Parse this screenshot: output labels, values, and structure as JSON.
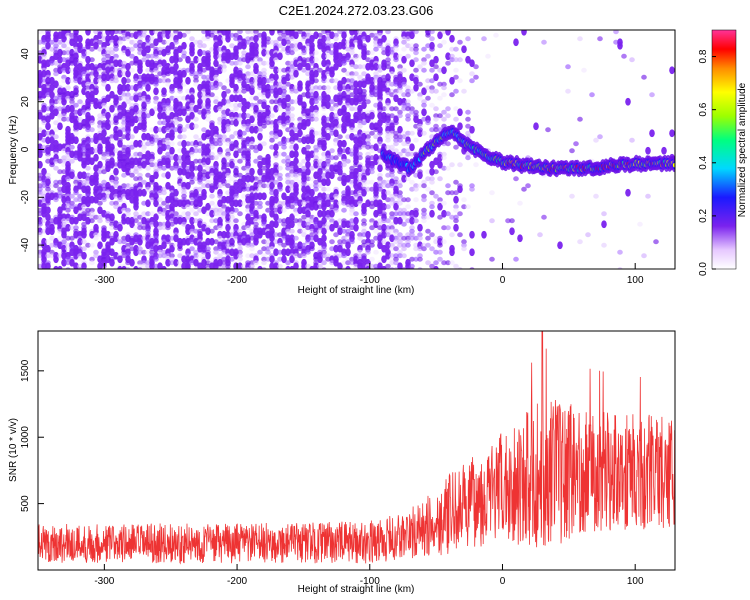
{
  "title": "C2E1.2024.272.03.23.G06",
  "chart_data": [
    {
      "type": "heatmap",
      "xlabel": "Height of straight line (km)",
      "ylabel": "Frequency (Hz)",
      "xlim": [
        -350,
        130
      ],
      "ylim": [
        -50,
        50
      ],
      "x_ticks": [
        -300,
        -200,
        -100,
        0,
        100
      ],
      "y_ticks": [
        -40,
        -20,
        0,
        20,
        40
      ],
      "colorbar": {
        "label": "Normalized spectral amplitude",
        "range": [
          0.0,
          0.9
        ],
        "ticks": [
          0.0,
          0.2,
          0.4,
          0.6,
          0.8
        ]
      },
      "ridge": {
        "description_values": "frequency (Hz) of spectral ridge vs height (km)",
        "x": [
          -90,
          -80,
          -70,
          -60,
          -50,
          -45,
          -40,
          -30,
          -20,
          -10,
          0,
          20,
          40,
          60,
          80,
          100,
          120,
          130
        ],
        "y": [
          -2,
          -5,
          -8,
          -2,
          3,
          6,
          8,
          3,
          0,
          -3,
          -5,
          -7,
          -8,
          -8,
          -7,
          -6,
          -6,
          -6
        ]
      }
    },
    {
      "type": "line",
      "xlabel": "Height of straight line (km)",
      "ylabel": "SNR (10 * v/v)",
      "xlim": [
        -350,
        130
      ],
      "ylim": [
        0,
        1800
      ],
      "x_ticks": [
        -300,
        -200,
        -100,
        0,
        100
      ],
      "y_ticks": [
        500,
        1000,
        1500
      ],
      "series": [
        {
          "name": "SNR",
          "color": "#ee3333",
          "envelope_x": [
            -350,
            -300,
            -200,
            -100,
            -80,
            -60,
            -50,
            -40,
            -20,
            0,
            20,
            30,
            40,
            60,
            80,
            100,
            130
          ],
          "envelope_mean": [
            200,
            200,
            200,
            210,
            240,
            300,
            360,
            420,
            520,
            620,
            700,
            720,
            740,
            760,
            750,
            740,
            740
          ],
          "envelope_spread": [
            150,
            150,
            150,
            160,
            180,
            220,
            260,
            300,
            350,
            420,
            520,
            600,
            560,
            480,
            460,
            450,
            420
          ],
          "peak_max": 1800
        }
      ]
    }
  ],
  "colors": {
    "snr_line": "#ee3333",
    "noise": "#7a22ee"
  }
}
